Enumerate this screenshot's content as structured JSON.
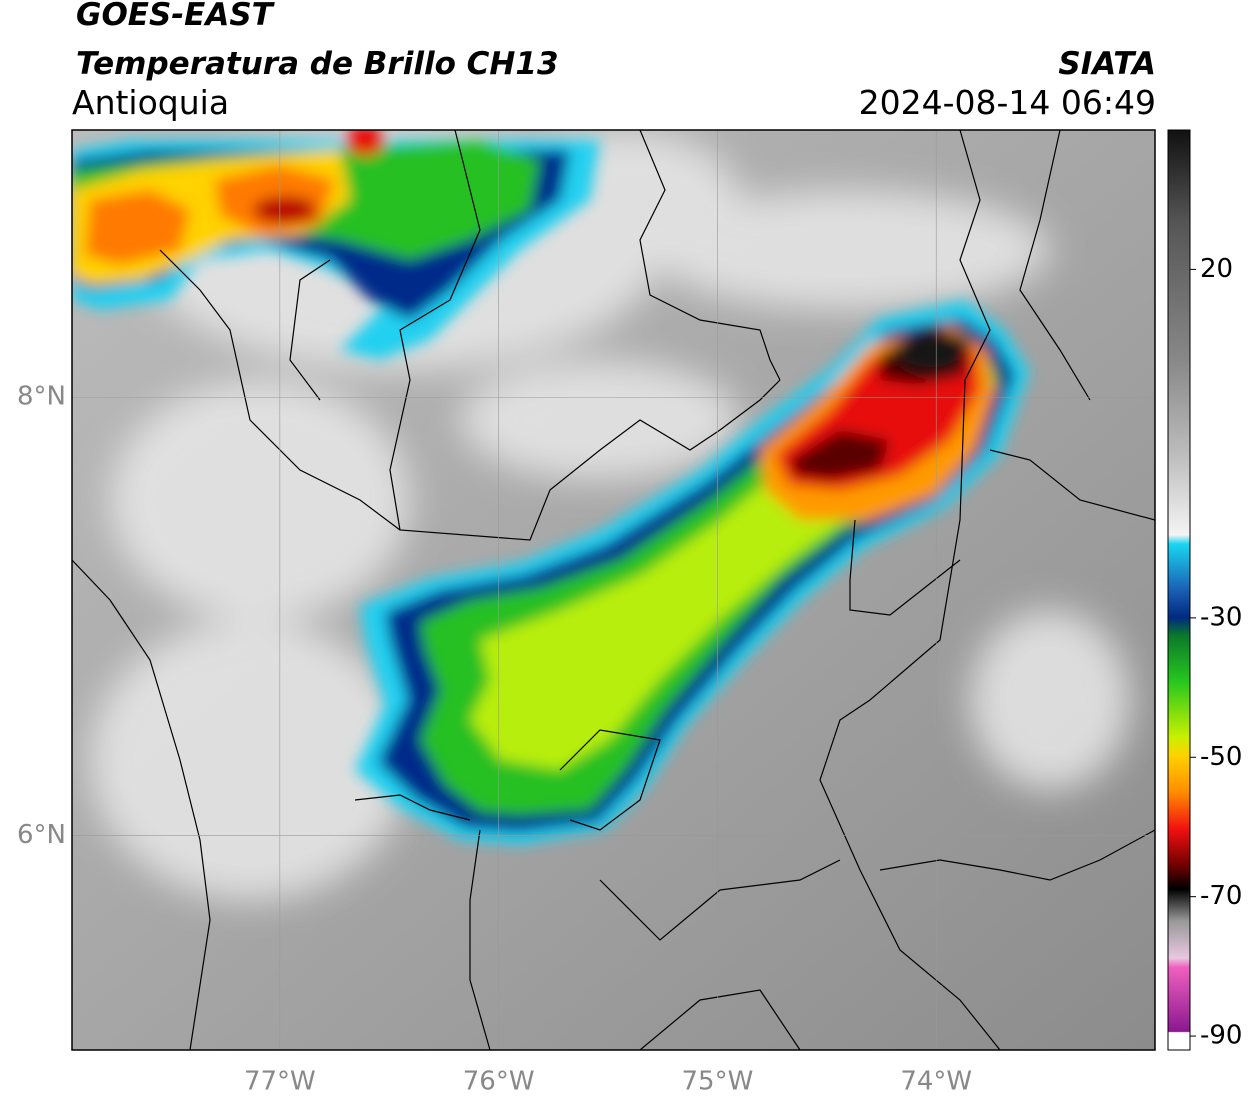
{
  "header": {
    "title": "GOES-EAST",
    "subtitle": "Temperatura de Brillo CH13",
    "region": "Antioquia",
    "source": "SIATA",
    "datetime": "2024-08-14 06:49"
  },
  "map": {
    "xlim": [
      -77.95,
      -73.0
    ],
    "ylim": [
      5.02,
      9.22
    ],
    "xticks": [
      {
        "value": -77,
        "label": "77°W"
      },
      {
        "value": -76,
        "label": "76°W"
      },
      {
        "value": -75,
        "label": "75°W"
      },
      {
        "value": -74,
        "label": "74°W"
      }
    ],
    "yticks": [
      {
        "value": 8,
        "label": "8°N"
      },
      {
        "value": 6,
        "label": "6°N"
      }
    ]
  },
  "colorbar": {
    "lim": [
      -92,
      40
    ],
    "ticks": [
      20,
      -30,
      -50,
      -70,
      -90
    ]
  }
}
